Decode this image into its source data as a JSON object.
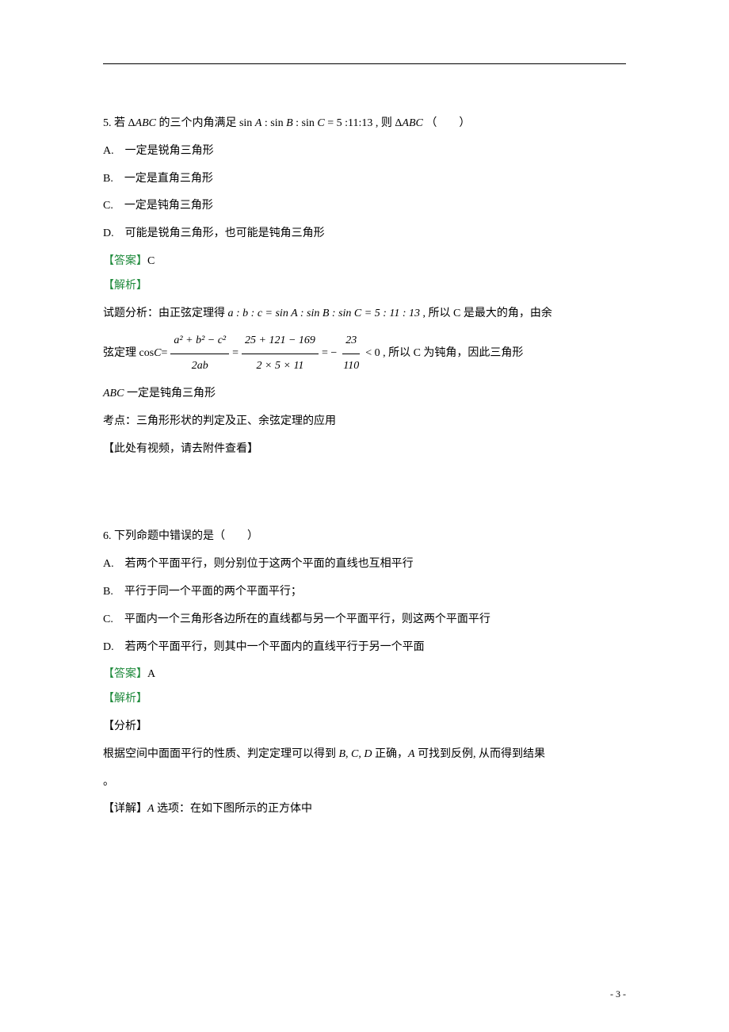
{
  "colors": {
    "text": "#000000",
    "green_label": "#1f8a3c",
    "background": "#ffffff",
    "separator": "#000000"
  },
  "typography": {
    "body_fontsize": 14,
    "body_font": "SimSun",
    "math_font": "Times New Roman",
    "line_height": 2.2,
    "page_num_fontsize": 12
  },
  "q5": {
    "stem_prefix": "5. 若 Δ",
    "stem_abc": "ABC",
    "stem_mid": " 的三个内角满足 sin ",
    "stem_a": "A",
    "stem_colon1": " : sin ",
    "stem_b": "B",
    "stem_colon2": " : sin ",
    "stem_c": "C",
    "stem_eq": " = 5 :11:13 , 则 Δ",
    "stem_abc2": "ABC",
    "stem_end": " （　　）",
    "opt_a": "A.　一定是锐角三角形",
    "opt_b": "B.　一定是直角三角形",
    "opt_c": "C.　一定是钝角三角形",
    "opt_d": "D.　可能是锐角三角形，也可能是钝角三角形",
    "answer_label": "【答案】",
    "answer_value": "C",
    "analysis_label": "【解析】",
    "analysis_line1_pre": "试题分析：由正弦定理得 ",
    "analysis_line1_ratio": "a : b : c = sin A : sin B : sin C = 5 : 11 : 13",
    "analysis_line1_post": " , 所以 C 是最大的角，由余",
    "cos_line_pre": "弦定理 cos ",
    "cos_c": "C",
    "cos_eq": " = ",
    "frac1_num": "a² + b² − c²",
    "frac1_den": "2ab",
    "frac2_num": "25 + 121 − 169",
    "frac2_den": "2 × 5 × 11",
    "frac3_num": "23",
    "frac3_den": "110",
    "cos_line_post": " < 0 , 所以 C 为钝角，因此三角形",
    "abc_obtuse": "ABC",
    "abc_obtuse_post": " 一定是钝角三角形",
    "keypoint": "考点：三角形形状的判定及正、余弦定理的应用",
    "video_note": "【此处有视频，请去附件查看】"
  },
  "q6": {
    "stem": "6. 下列命题中错误的是（　　）",
    "opt_a": "A.　若两个平面平行，则分别位于这两个平面的直线也互相平行",
    "opt_b": "B.　平行于同一个平面的两个平面平行；",
    "opt_c": "C.　平面内一个三角形各边所在的直线都与另一个平面平行，则这两个平面平行",
    "opt_d": "D.　若两个平面平行，则其中一个平面内的直线平行于另一个平面",
    "answer_label": "【答案】",
    "answer_value": "A",
    "analysis_label": "【解析】",
    "sub_label": "【分析】",
    "analysis_text_pre": "根据空间中面面平行的性质、判定定理可以得到 ",
    "analysis_bcd": "B, C, D",
    "analysis_text_mid": " 正确，",
    "analysis_a": "A",
    "analysis_text_post": " 可找到反例, 从而得到结果",
    "period": "。",
    "detail_label": "【详解】",
    "detail_a": "A",
    "detail_text": " 选项：在如下图所示的正方体中"
  },
  "page_number": "- 3 -"
}
